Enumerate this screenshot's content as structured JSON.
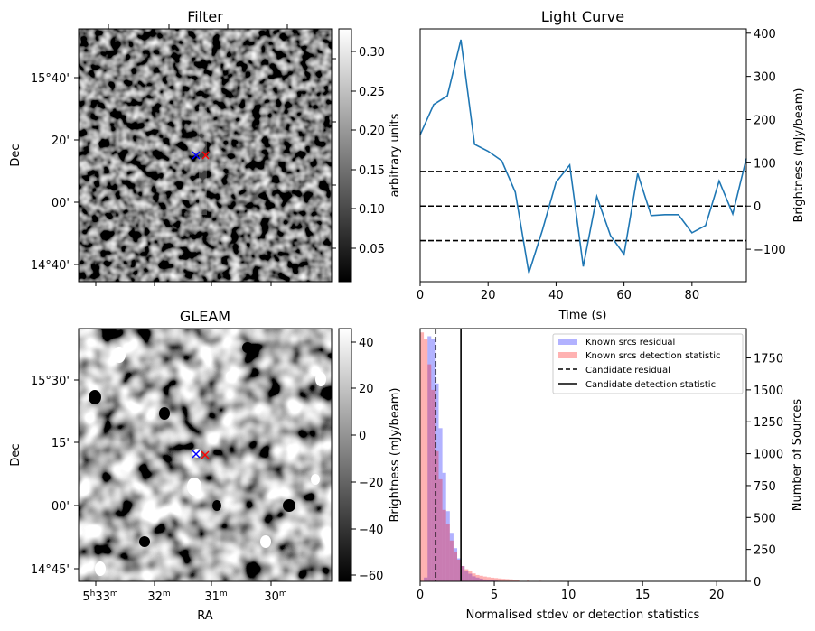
{
  "chart_data": [
    {
      "type": "heatmap",
      "title": "Filter",
      "xlabel": "",
      "ylabel": "Dec",
      "y_ticks": [
        "15°40'",
        "20'",
        "00'",
        "14°40'"
      ],
      "colorbar": {
        "label": "arbitrary units",
        "ticks": [
          "0.30",
          "0.25",
          "0.20",
          "0.15",
          "0.10",
          "0.05"
        ],
        "range": [
          0.01,
          0.325
        ]
      },
      "markers": [
        {
          "symbol": "x",
          "color": "#0000ff"
        },
        {
          "symbol": "x",
          "color": "#ff0000"
        }
      ]
    },
    {
      "type": "line",
      "title": "Light Curve",
      "xlabel": "Time (s)",
      "ylabel": "Brightness (mJy/beam)",
      "xlim": [
        0,
        96
      ],
      "ylim": [
        -175,
        410
      ],
      "x_ticks": [
        "0",
        "20",
        "40",
        "60",
        "80"
      ],
      "y_ticks": [
        "400",
        "300",
        "200",
        "100",
        "0",
        "−100"
      ],
      "x": [
        0,
        4,
        8,
        12,
        16,
        20,
        24,
        28,
        32,
        36,
        40,
        44,
        48,
        52,
        56,
        60,
        64,
        68,
        72,
        76,
        80,
        84,
        88,
        92,
        96
      ],
      "values": [
        165,
        235,
        255,
        385,
        143,
        127,
        105,
        32,
        -155,
        -55,
        55,
        95,
        -140,
        22,
        -68,
        -112,
        75,
        -22,
        -20,
        -20,
        -62,
        -45,
        58,
        -18,
        110
      ],
      "series_color": "#1f77b4",
      "hlines": [
        {
          "y": 80,
          "style": "dashed"
        },
        {
          "y": 0,
          "style": "dashed"
        },
        {
          "y": -80,
          "style": "dashed"
        }
      ]
    },
    {
      "type": "heatmap",
      "title": "GLEAM",
      "xlabel": "RA",
      "ylabel": "Dec",
      "x_ticks": [
        "5h33m",
        "32m",
        "31m",
        "30m"
      ],
      "y_ticks": [
        "15°30'",
        "15'",
        "00'",
        "14°45'"
      ],
      "colorbar": {
        "label": "Brightness (mJy/beam)",
        "ticks": [
          "40",
          "20",
          "0",
          "−20",
          "−40",
          "−60"
        ],
        "range": [
          -63,
          45
        ]
      },
      "markers": [
        {
          "symbol": "x",
          "color": "#0000ff"
        },
        {
          "symbol": "x",
          "color": "#ff0000"
        }
      ]
    },
    {
      "type": "bar",
      "title": "",
      "xlabel": "Normalised stdev or detection statistics",
      "ylabel": "Number of Sources",
      "xlim": [
        0,
        22
      ],
      "ylim": [
        0,
        1980
      ],
      "x_ticks": [
        "0",
        "5",
        "10",
        "15",
        "20"
      ],
      "y_ticks": [
        "1750",
        "1500",
        "1250",
        "1000",
        "750",
        "500",
        "250",
        "0"
      ],
      "bin_width": 0.25,
      "series": [
        {
          "name": "Known srcs residual",
          "color": "#0000ff",
          "values": [
            0,
            30,
            1920,
            1900,
            1550,
            1200,
            850,
            550,
            380,
            260,
            180,
            120,
            80,
            60,
            40,
            30,
            22,
            15,
            10,
            8,
            6,
            4,
            3,
            2,
            2,
            1
          ]
        },
        {
          "name": "Known srcs detection statistic",
          "color": "#ff0000",
          "values": [
            1950,
            1900,
            1700,
            1500,
            1020,
            800,
            560,
            450,
            320,
            230,
            170,
            120,
            95,
            78,
            62,
            50,
            44,
            38,
            33,
            29,
            26,
            23,
            20,
            18,
            16,
            14
          ]
        }
      ],
      "vlines": [
        {
          "name": "Candidate residual",
          "x": 1.05,
          "style": "dashed"
        },
        {
          "name": "Candidate detection statistic",
          "x": 2.75,
          "style": "solid"
        }
      ]
    }
  ]
}
